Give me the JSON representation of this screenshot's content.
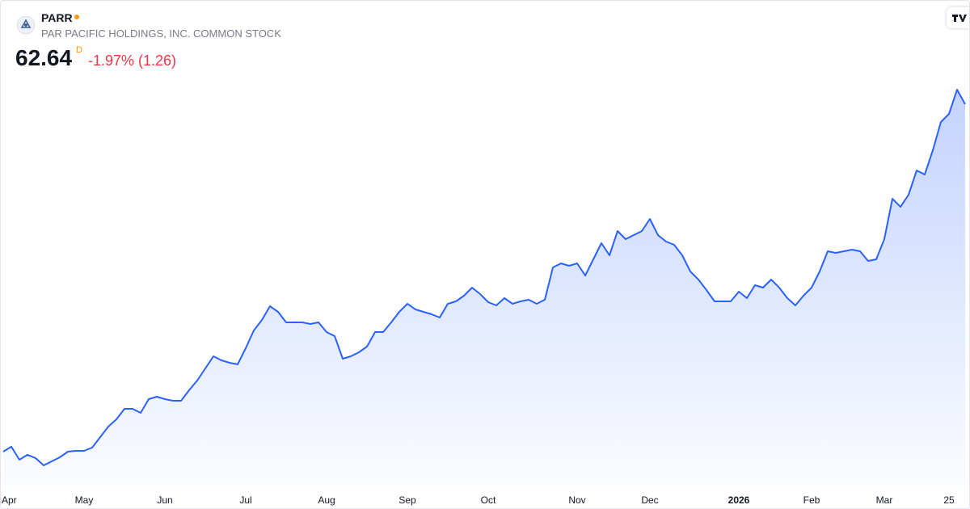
{
  "header": {
    "symbol": "PARR",
    "name": "PAR PACIFIC HOLDINGS, INC. COMMON STOCK",
    "price": "62.64",
    "interval": "D",
    "change": "-1.97% (1.26)"
  },
  "chart_data": {
    "type": "line",
    "categories": [
      "Apr",
      null,
      null,
      null,
      null,
      null,
      null,
      null,
      null,
      null,
      "May",
      null,
      null,
      null,
      null,
      null,
      null,
      null,
      null,
      null,
      "Jun",
      null,
      null,
      null,
      null,
      null,
      null,
      null,
      null,
      null,
      "Jul",
      null,
      null,
      null,
      null,
      null,
      null,
      null,
      null,
      null,
      "Aug",
      null,
      null,
      null,
      null,
      null,
      null,
      null,
      null,
      null,
      "Sep",
      null,
      null,
      null,
      null,
      null,
      null,
      null,
      null,
      null,
      "Oct",
      null,
      null,
      null,
      null,
      null,
      null,
      null,
      null,
      null,
      null,
      "Nov",
      null,
      null,
      null,
      null,
      null,
      null,
      null,
      null,
      "Dec",
      null,
      null,
      null,
      null,
      null,
      null,
      null,
      null,
      null,
      null,
      "2026",
      null,
      null,
      null,
      null,
      null,
      null,
      null,
      null,
      "Feb",
      null,
      null,
      null,
      null,
      null,
      null,
      null,
      null,
      "Mar",
      null,
      null,
      null,
      null,
      null,
      null,
      null,
      "25",
      null,
      null
    ],
    "series": [
      {
        "name": "PARR",
        "color": "#2962ff",
        "values": [
          14.91,
          15.58,
          13.8,
          14.47,
          14.02,
          13.02,
          13.58,
          14.13,
          14.91,
          15.02,
          15.02,
          15.46,
          16.91,
          18.35,
          19.35,
          20.79,
          20.79,
          20.24,
          22.12,
          22.46,
          22.12,
          21.9,
          21.9,
          23.35,
          24.68,
          26.34,
          28.01,
          27.45,
          27.12,
          26.9,
          29.12,
          31.56,
          33.0,
          34.89,
          34.11,
          32.67,
          32.67,
          32.67,
          32.45,
          32.67,
          31.34,
          30.78,
          27.67,
          28.01,
          28.56,
          29.34,
          31.34,
          31.34,
          32.67,
          34.11,
          35.22,
          34.45,
          34.11,
          33.78,
          33.34,
          35.22,
          35.56,
          36.33,
          37.44,
          36.55,
          35.44,
          35.0,
          36.0,
          35.22,
          35.56,
          35.78,
          35.22,
          35.78,
          40.22,
          40.77,
          40.44,
          40.77,
          39.11,
          41.33,
          43.55,
          41.88,
          45.21,
          44.1,
          44.66,
          45.21,
          46.88,
          44.66,
          43.77,
          43.33,
          41.88,
          39.66,
          38.55,
          37.11,
          35.56,
          35.56,
          35.56,
          36.89,
          36.0,
          37.78,
          37.44,
          38.55,
          37.44,
          36.0,
          35.0,
          36.33,
          37.44,
          39.66,
          42.44,
          42.22,
          42.44,
          42.66,
          42.44,
          41.11,
          41.33,
          44.1,
          49.65,
          48.54,
          50.21,
          53.54,
          52.98,
          56.31,
          60.2,
          61.31,
          64.64,
          62.64
        ]
      }
    ]
  }
}
